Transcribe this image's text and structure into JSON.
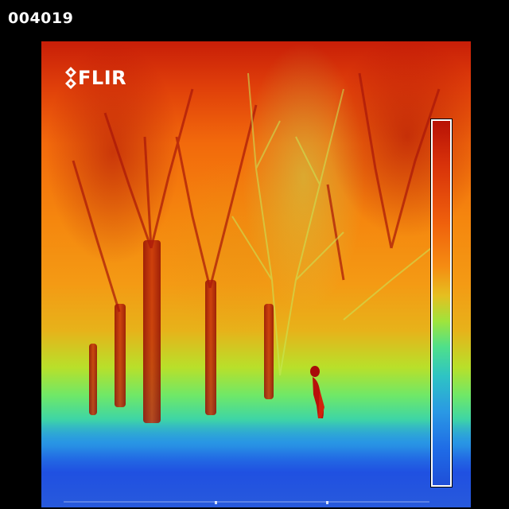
{
  "frame_number": "004019",
  "logo": {
    "text": "FLIR",
    "icon": "flir-diamond-logo-icon"
  },
  "colors": {
    "background": "#000000",
    "hot": "#c81e08",
    "warm": "#f5860e",
    "mid": "#b8e02a",
    "cool": "#2aa6e0",
    "cold": "#1f4fe0"
  },
  "scale_bar": {
    "icon": "temperature-scale-bar"
  }
}
